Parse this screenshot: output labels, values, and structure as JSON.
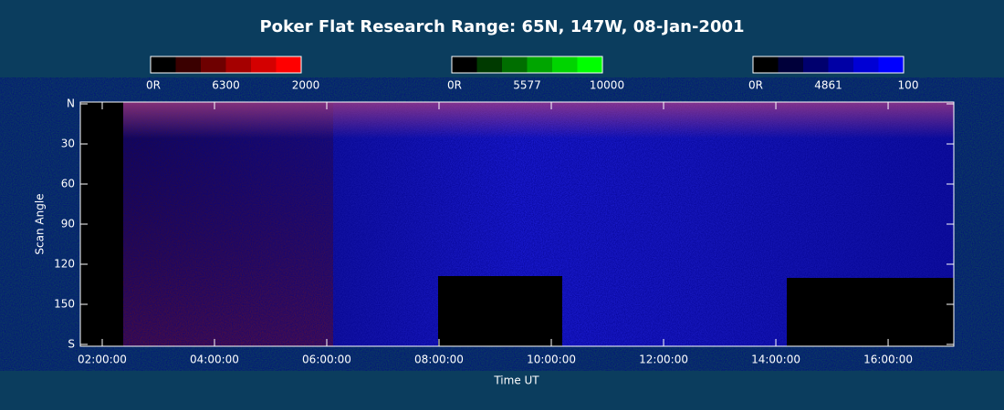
{
  "chart_data": {
    "type": "keogram",
    "title": "Poker Flat Research Range: 65N, 147W, 08-Jan-2001",
    "x_label": "Time UT",
    "y_label": "Scan Angle",
    "xlim": [
      1.61,
      17.17
    ],
    "xticks": [
      {
        "value": 2,
        "label": "02:00:00"
      },
      {
        "value": 4,
        "label": "04:00:00"
      },
      {
        "value": 6,
        "label": "06:00:00"
      },
      {
        "value": 8,
        "label": "08:00:00"
      },
      {
        "value": 10,
        "label": "10:00:00"
      },
      {
        "value": 12,
        "label": "12:00:00"
      },
      {
        "value": 14,
        "label": "14:00:00"
      },
      {
        "value": 16,
        "label": "16:00:00"
      }
    ],
    "ylim": [
      0,
      180
    ],
    "yticks": [
      {
        "value": 0,
        "label": "N"
      },
      30,
      60,
      90,
      120,
      150,
      {
        "value": 180,
        "label": "S"
      }
    ],
    "colorbars": [
      {
        "name": "6300",
        "min_label": "0R",
        "max_label": "2000",
        "colors": [
          "#000000",
          "#3a0000",
          "#6e0000",
          "#a50000",
          "#d40000",
          "#ff0000"
        ]
      },
      {
        "name": "5577",
        "min_label": "0R",
        "max_label": "10000",
        "colors": [
          "#000000",
          "#003a00",
          "#006e00",
          "#00a500",
          "#00d400",
          "#00ff00"
        ]
      },
      {
        "name": "4861",
        "min_label": "0R",
        "max_label": "100",
        "colors": [
          "#000000",
          "#00003a",
          "#00006e",
          "#0000a5",
          "#0000d4",
          "#0000ff"
        ]
      }
    ]
  }
}
